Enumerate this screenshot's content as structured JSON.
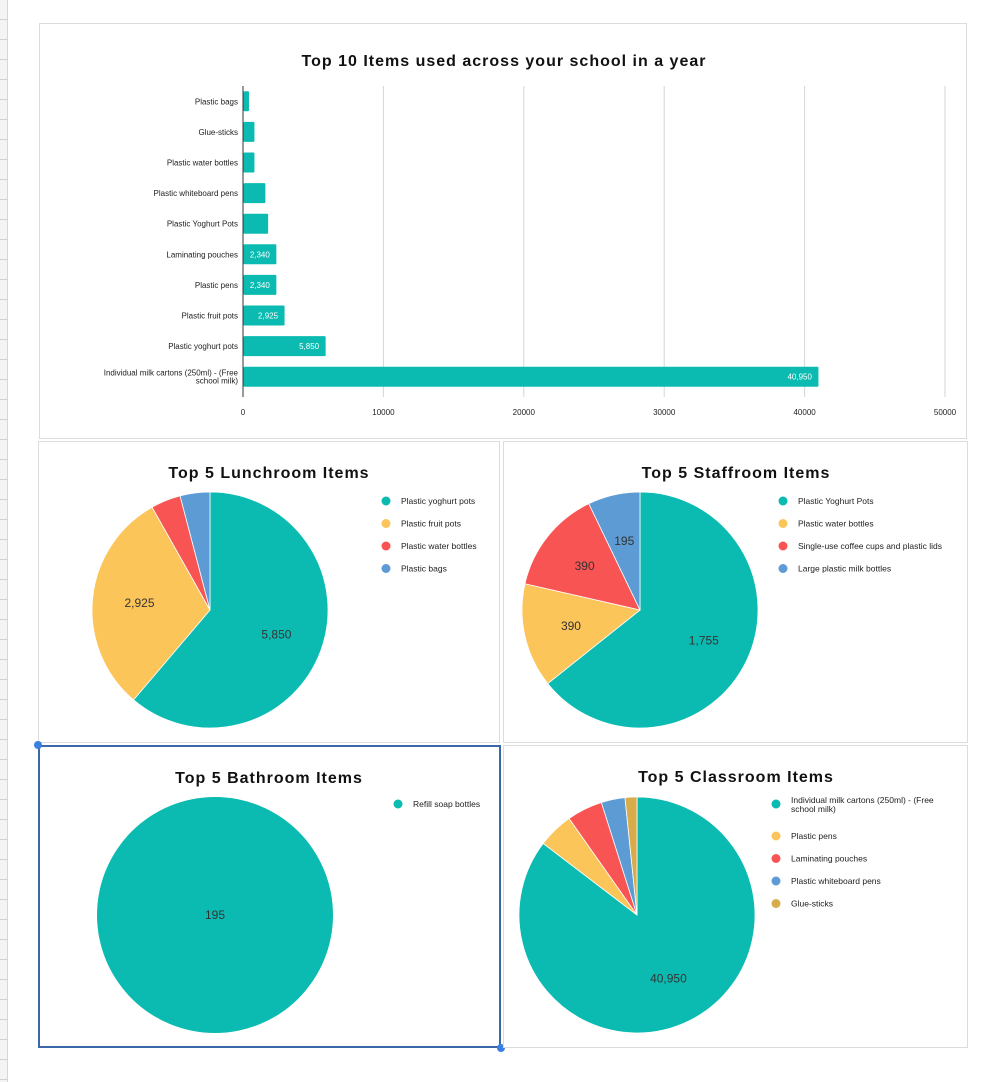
{
  "colors": {
    "teal": "#0bbbb1",
    "yellow": "#fcc55a",
    "red": "#f95454",
    "blue": "#5d9bd5",
    "gold": "#d9ac4b",
    "grid": "#d6d6d6"
  },
  "chart_data": [
    {
      "type": "bar",
      "title": "Top 10 Items used across your school in a year",
      "categories": [
        "Plastic bags",
        "Glue-sticks",
        "Plastic water bottles",
        "Plastic whiteboard pens",
        "Plastic  Yoghurt  Pots",
        "Laminating pouches",
        "Plastic pens",
        "Plastic fruit pots",
        "Plastic yoghurt pots",
        "Individual milk cartons (250ml) - (Free school milk)"
      ],
      "values": [
        390,
        780,
        780,
        1560,
        1755,
        2340,
        2340,
        2925,
        5850,
        40950
      ],
      "data_labels": [
        null,
        null,
        null,
        null,
        null,
        "2,340",
        "2,340",
        "2,925",
        "5,850",
        "40,950"
      ],
      "xlim": [
        0,
        50000
      ],
      "xticks": [
        "0",
        "10000",
        "20000",
        "30000",
        "40000",
        "50000"
      ],
      "grid": true
    },
    {
      "type": "pie",
      "title": "Top 5 Lunchroom Items",
      "labels": [
        "Plastic yoghurt pots",
        "Plastic fruit pots",
        "Plastic water bottles",
        "Plastic bags"
      ],
      "values": [
        5850,
        2925,
        390,
        390
      ],
      "slice_labels": [
        "5,850",
        "2,925",
        null,
        null
      ],
      "colors": [
        "#0bbbb1",
        "#fcc55a",
        "#f95454",
        "#5d9bd5"
      ],
      "legend": "right"
    },
    {
      "type": "pie",
      "title": "Top 5 Staffroom Items",
      "labels": [
        "Plastic  Yoghurt  Pots",
        "Plastic water bottles",
        "Single-use coffee cups and plastic lids",
        "Large plastic milk bottles"
      ],
      "values": [
        1755,
        390,
        390,
        195
      ],
      "slice_labels": [
        "1,755",
        "390",
        "390",
        "195"
      ],
      "colors": [
        "#0bbbb1",
        "#fcc55a",
        "#f95454",
        "#5d9bd5"
      ],
      "legend": "right"
    },
    {
      "type": "pie",
      "title": "Top 5 Bathroom Items",
      "labels": [
        "Refill soap bottles"
      ],
      "values": [
        195
      ],
      "slice_labels": [
        "195"
      ],
      "colors": [
        "#0bbbb1"
      ],
      "legend": "right"
    },
    {
      "type": "pie",
      "title": "Top 5 Classroom Items",
      "labels": [
        "Individual milk cartons (250ml) - (Free school milk)",
        "Plastic pens",
        "Laminating pouches",
        "Plastic whiteboard pens",
        "Glue-sticks"
      ],
      "values": [
        40950,
        2340,
        2340,
        1560,
        780
      ],
      "slice_labels": [
        "40,950",
        null,
        null,
        null,
        null
      ],
      "colors": [
        "#0bbbb1",
        "#fcc55a",
        "#f95454",
        "#5d9bd5",
        "#d9ac4b"
      ],
      "legend": "right"
    }
  ]
}
